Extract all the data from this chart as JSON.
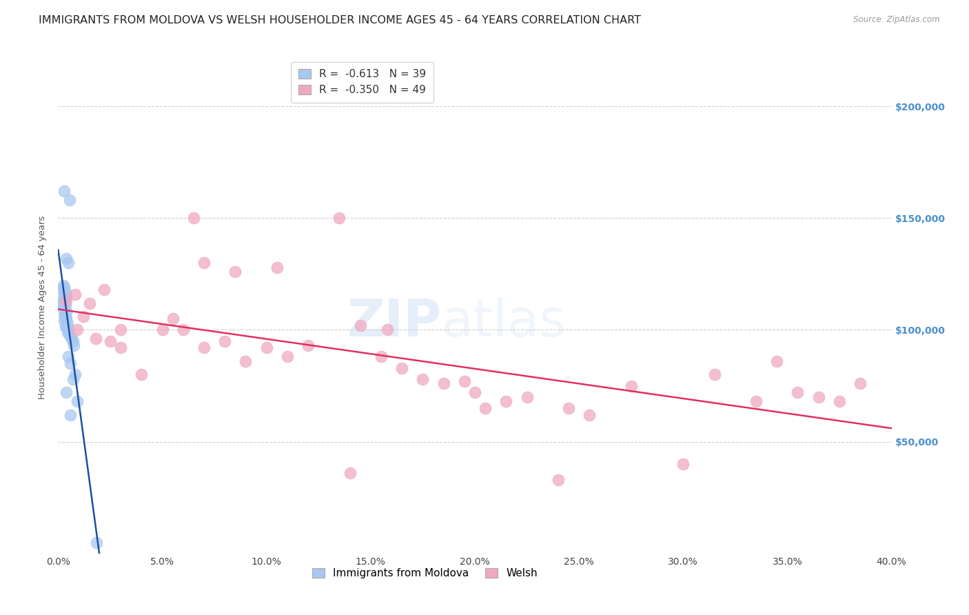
{
  "title": "IMMIGRANTS FROM MOLDOVA VS WELSH HOUSEHOLDER INCOME AGES 45 - 64 YEARS CORRELATION CHART",
  "source": "Source: ZipAtlas.com",
  "ylabel": "Householder Income Ages 45 - 64 years",
  "xlim": [
    0.0,
    40.0
  ],
  "ylim": [
    0,
    220000
  ],
  "legend_blue_R": "-0.613",
  "legend_blue_N": "39",
  "legend_pink_R": "-0.350",
  "legend_pink_N": "49",
  "label_blue": "Immigrants from Moldova",
  "label_pink": "Welsh",
  "watermark_text": "ZIPatlas",
  "blue_color": "#a8c8f0",
  "pink_color": "#f0a8c0",
  "blue_line_color": "#1a4fa0",
  "pink_line_color": "#e03060",
  "background_color": "#ffffff",
  "grid_color": "#d0d0d0",
  "right_tick_color": "#4a90d0",
  "title_fontsize": 11.5,
  "tick_fontsize": 10,
  "blue_scatter": [
    [
      0.3,
      162000
    ],
    [
      0.55,
      158000
    ],
    [
      0.4,
      132000
    ],
    [
      0.5,
      130000
    ],
    [
      0.25,
      120000
    ],
    [
      0.3,
      119000
    ],
    [
      0.2,
      118000
    ],
    [
      0.35,
      117000
    ],
    [
      0.3,
      116000
    ],
    [
      0.4,
      115000
    ],
    [
      0.25,
      114000
    ],
    [
      0.3,
      113000
    ],
    [
      0.2,
      112000
    ],
    [
      0.35,
      111000
    ],
    [
      0.25,
      110000
    ],
    [
      0.3,
      109000
    ],
    [
      0.4,
      108000
    ],
    [
      0.3,
      107000
    ],
    [
      0.35,
      106000
    ],
    [
      0.4,
      105000
    ],
    [
      0.3,
      104000
    ],
    [
      0.45,
      103000
    ],
    [
      0.35,
      102000
    ],
    [
      0.4,
      101000
    ],
    [
      0.5,
      100000
    ],
    [
      0.45,
      99000
    ],
    [
      0.55,
      98000
    ],
    [
      0.6,
      97000
    ],
    [
      0.65,
      96000
    ],
    [
      0.7,
      95000
    ],
    [
      0.75,
      93000
    ],
    [
      0.5,
      88000
    ],
    [
      0.6,
      85000
    ],
    [
      0.8,
      80000
    ],
    [
      0.7,
      78000
    ],
    [
      0.4,
      72000
    ],
    [
      0.9,
      68000
    ],
    [
      0.6,
      62000
    ],
    [
      1.85,
      5000
    ]
  ],
  "pink_scatter": [
    [
      0.4,
      113000
    ],
    [
      0.8,
      116000
    ],
    [
      1.5,
      112000
    ],
    [
      1.2,
      106000
    ],
    [
      0.9,
      100000
    ],
    [
      2.2,
      118000
    ],
    [
      1.8,
      96000
    ],
    [
      3.0,
      92000
    ],
    [
      2.5,
      95000
    ],
    [
      4.0,
      80000
    ],
    [
      5.5,
      105000
    ],
    [
      6.0,
      100000
    ],
    [
      7.0,
      92000
    ],
    [
      8.0,
      95000
    ],
    [
      9.0,
      86000
    ],
    [
      10.0,
      92000
    ],
    [
      11.0,
      88000
    ],
    [
      12.0,
      93000
    ],
    [
      6.5,
      150000
    ],
    [
      13.5,
      150000
    ],
    [
      7.0,
      130000
    ],
    [
      8.5,
      126000
    ],
    [
      10.5,
      128000
    ],
    [
      14.5,
      102000
    ],
    [
      15.5,
      88000
    ],
    [
      16.5,
      83000
    ],
    [
      17.5,
      78000
    ],
    [
      18.5,
      76000
    ],
    [
      19.5,
      77000
    ],
    [
      20.0,
      72000
    ],
    [
      21.5,
      68000
    ],
    [
      14.0,
      36000
    ],
    [
      20.5,
      65000
    ],
    [
      22.5,
      70000
    ],
    [
      24.0,
      33000
    ],
    [
      30.0,
      40000
    ],
    [
      24.5,
      65000
    ],
    [
      25.5,
      62000
    ],
    [
      27.5,
      75000
    ],
    [
      31.5,
      80000
    ],
    [
      34.5,
      86000
    ],
    [
      33.5,
      68000
    ],
    [
      35.5,
      72000
    ],
    [
      36.5,
      70000
    ],
    [
      37.5,
      68000
    ],
    [
      38.5,
      76000
    ],
    [
      15.8,
      100000
    ],
    [
      3.0,
      100000
    ],
    [
      5.0,
      100000
    ]
  ]
}
